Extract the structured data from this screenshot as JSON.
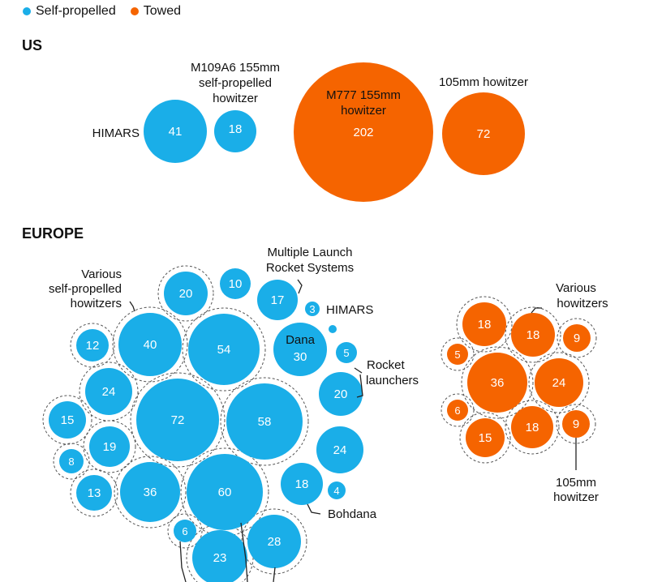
{
  "legend": [
    {
      "label": "Self-propelled",
      "color": "#1aaee8"
    },
    {
      "label": "Towed",
      "color": "#f56400"
    }
  ],
  "sections": {
    "us": "US",
    "europe": "EUROPE"
  },
  "chart_data": {
    "type": "bubble",
    "groups": [
      {
        "name": "US",
        "items": [
          {
            "label": "HIMARS",
            "value": 41,
            "kind": "Self-propelled"
          },
          {
            "label": "M109A6 155mm self-propelled howitzer",
            "value": 18,
            "kind": "Self-propelled"
          },
          {
            "label": "M777 155mm howitzer",
            "value": 202,
            "kind": "Towed"
          },
          {
            "label": "105mm howitzer",
            "value": 72,
            "kind": "Towed"
          }
        ]
      },
      {
        "name": "EUROPE",
        "items": [
          {
            "label": "Various self-propelled howitzers",
            "value": [
              20,
              12,
              40,
              54,
              24,
              15,
              19,
              8,
              13,
              36,
              60,
              72,
              58,
              6,
              23,
              28
            ],
            "kind": "Self-propelled"
          },
          {
            "label": "Multiple Launch Rocket Systems",
            "value": [
              10,
              17
            ],
            "kind": "Self-propelled"
          },
          {
            "label": "HIMARS",
            "value": 3,
            "kind": "Self-propelled"
          },
          {
            "label": "Dana",
            "value": 30,
            "kind": "Self-propelled"
          },
          {
            "label": "Rocket launchers",
            "value": [
              5,
              20
            ],
            "kind": "Self-propelled"
          },
          {
            "label": "",
            "value": [
              24,
              4,
              1
            ],
            "kind": "Self-propelled"
          },
          {
            "label": "Bohdana",
            "value": 18,
            "kind": "Self-propelled"
          },
          {
            "label": "Various howitzers",
            "value": [
              18,
              18,
              9,
              5,
              36,
              24,
              6,
              15,
              18
            ],
            "kind": "Towed"
          },
          {
            "label": "105mm howitzer",
            "value": 9,
            "kind": "Towed"
          }
        ]
      }
    ],
    "annotations": [
      "HIMARS",
      "M109A6 155mm",
      "self-propelled",
      "howitzer",
      "M777 155mm",
      "howitzer",
      "105mm howitzer",
      "Multiple Launch",
      "Rocket Systems",
      "Various",
      "self-propelled",
      "howitzers",
      "HIMARS",
      "Dana",
      "Rocket",
      "launchers",
      "Bohdana",
      "Various",
      "howitzers",
      "105mm",
      "howitzer"
    ]
  }
}
